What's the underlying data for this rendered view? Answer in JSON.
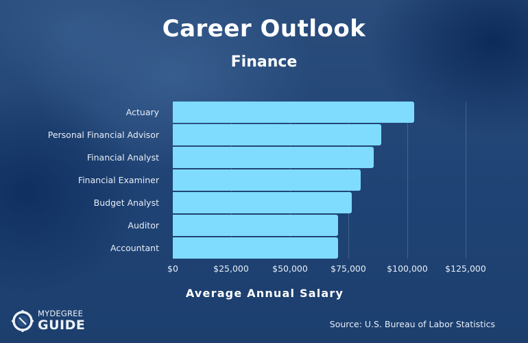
{
  "header": {
    "title": "Career Outlook",
    "subtitle": "Finance"
  },
  "colors": {
    "background": "#1f4374",
    "bar": "#7fdcff",
    "text": "#ffffff"
  },
  "chart_data": {
    "type": "bar",
    "orientation": "horizontal",
    "title": "Career Outlook",
    "subtitle": "Finance",
    "xlabel": "Average Annual Salary",
    "ylabel": "",
    "categories": [
      "Actuary",
      "Personal Financial Advisor",
      "Financial Analyst",
      "Financial Examiner",
      "Budget Analyst",
      "Auditor",
      "Accountant"
    ],
    "values": [
      103000,
      89000,
      85800,
      80200,
      76400,
      70500,
      70500
    ],
    "xlim": [
      0,
      125000
    ],
    "x_ticks": [
      "$0",
      "$25,000",
      "$50,000",
      "$75,000",
      "$100,000",
      "$125,000"
    ],
    "x_tick_values": [
      0,
      25000,
      50000,
      75000,
      100000,
      125000
    ],
    "grid": true,
    "legend": null
  },
  "footer": {
    "logo_top": "MYDEGREE",
    "logo_bottom": "GUIDE",
    "source": "Source: U.S. Bureau of Labor Statistics"
  }
}
